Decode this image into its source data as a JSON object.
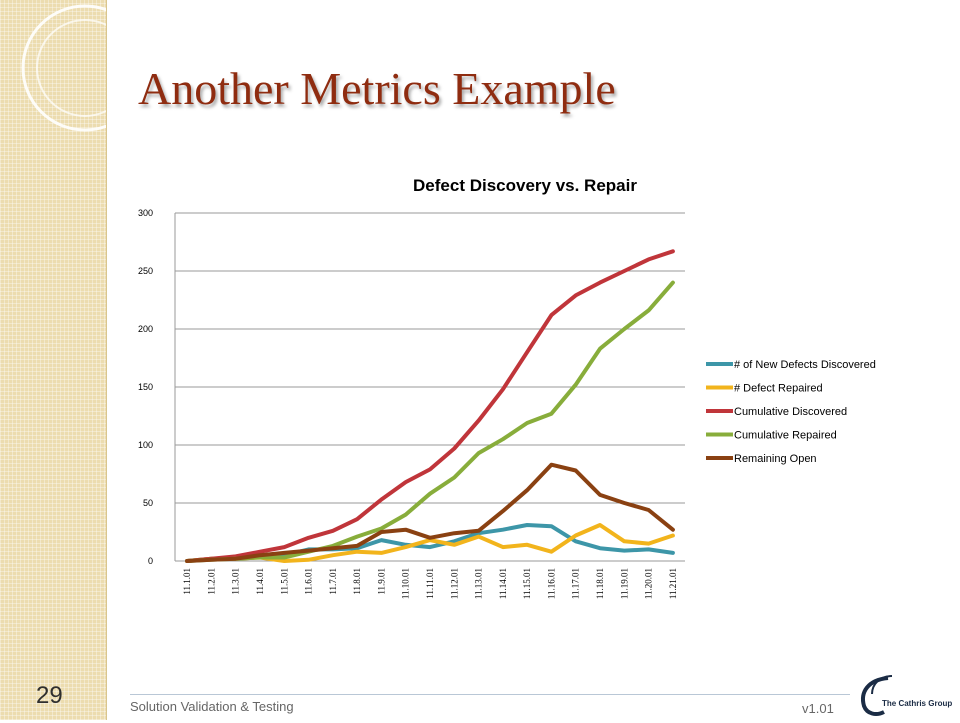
{
  "slide": {
    "title": "Another Metrics Example",
    "footer": "Solution Validation & Testing",
    "version": "v1.01",
    "page_number": "29",
    "logo_text": "The Cathris Group"
  },
  "colors": {
    "title": "#8f2c10",
    "strip": "#ecdcaf"
  },
  "chart_data": {
    "type": "line",
    "title": "Defect Discovery vs. Repair",
    "xlabel": "",
    "ylabel": "",
    "ylim": [
      0,
      300
    ],
    "yticks": [
      0,
      50,
      100,
      150,
      200,
      250,
      300
    ],
    "grid": true,
    "legend_position": "right",
    "categories": [
      "11.1.01",
      "11.2.01",
      "11.3.01",
      "11.4.01",
      "11.5.01",
      "11.6.01",
      "11.7.01",
      "11.8.01",
      "11.9.01",
      "11.10.01",
      "11.11.01",
      "11.12.01",
      "11.13.01",
      "11.14.01",
      "11.15.01",
      "11.16.01",
      "11.17.01",
      "11.18.01",
      "11.19.01",
      "11.20.01",
      "11.21.01"
    ],
    "series": [
      {
        "name": "# of New Defects Discovered",
        "color": "#3d96a8",
        "values": [
          0,
          2,
          2,
          5,
          5,
          10,
          10,
          11,
          18,
          14,
          12,
          17,
          24,
          27,
          31,
          30,
          17,
          11,
          9,
          10,
          7
        ]
      },
      {
        "name": "# Defect Repaired",
        "color": "#f2b41c",
        "values": [
          0,
          2,
          2,
          3,
          0,
          1,
          5,
          8,
          7,
          12,
          18,
          14,
          21,
          12,
          14,
          8,
          22,
          31,
          17,
          15,
          22
        ]
      },
      {
        "name": "Cumulative Discovered",
        "color": "#c0353a",
        "values": [
          0,
          2,
          4,
          8,
          12,
          20,
          26,
          36,
          53,
          68,
          79,
          97,
          121,
          148,
          180,
          212,
          229,
          240,
          250,
          260,
          267
        ]
      },
      {
        "name": "Cumulative Repaired",
        "color": "#88ad3b",
        "values": [
          0,
          1,
          2,
          3,
          3,
          8,
          13,
          21,
          28,
          40,
          58,
          72,
          93,
          105,
          119,
          127,
          152,
          183,
          200,
          216,
          240
        ]
      },
      {
        "name": "Remaining Open",
        "color": "#8a4112",
        "values": [
          0,
          1,
          2,
          5,
          7,
          9,
          11,
          13,
          25,
          27,
          20,
          24,
          26,
          43,
          61,
          83,
          78,
          57,
          50,
          44,
          27
        ]
      }
    ]
  }
}
